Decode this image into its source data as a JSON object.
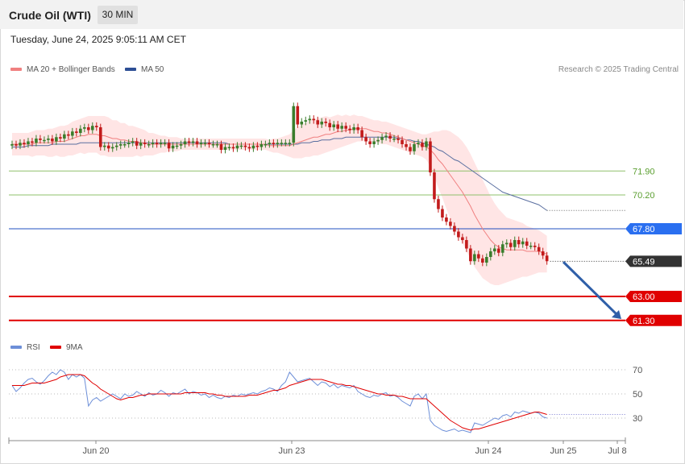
{
  "header": {
    "title": "Crude Oil (WTI)",
    "timeframe": "30 MIN"
  },
  "datetime": "Tuesday, June 24, 2025 9:05:11 AM CET",
  "legend": {
    "ma_bb": "MA 20 + Bollinger Bands",
    "ma50": "MA 50",
    "credit": "Research © 2025 Trading Central"
  },
  "rsi_legend": {
    "rsi": "RSI",
    "ma9": "9MA"
  },
  "colors": {
    "bull": "#3a7d2c",
    "bear": "#c21b1b",
    "ma20": "#f08080",
    "ma50": "#5a6fa0",
    "band": "#ffdcdc",
    "support": "#e00000",
    "resistance_green": "#8fc06b",
    "pivot": "#2050c0",
    "rsi": "#6d8fd8"
  },
  "chart_data": [
    {
      "type": "candlestick",
      "title": "Crude Oil (WTI)",
      "interval": "30 MIN",
      "x_ticks": [
        "Jun 20",
        "Jun 23",
        "Jun 24",
        "Jun 25",
        "Jul 8"
      ],
      "y_range": [
        60.6,
        75.2
      ],
      "last_price": 65.49,
      "levels": [
        {
          "value": 71.9,
          "label": "71.90",
          "style": "resistance-thin"
        },
        {
          "value": 70.2,
          "label": "70.20",
          "style": "resistance-thin"
        },
        {
          "value": 67.8,
          "label": "67.80",
          "style": "pivot"
        },
        {
          "value": 63.0,
          "label": "63.00",
          "style": "support"
        },
        {
          "value": 61.3,
          "label": "61.30",
          "style": "support"
        }
      ],
      "forecast_arrow": {
        "from": 65.45,
        "to": 61.4
      },
      "closes": [
        73.8,
        73.7,
        73.9,
        73.8,
        74.0,
        73.9,
        74.2,
        74.1,
        74.1,
        74.2,
        74.0,
        74.3,
        74.2,
        74.5,
        74.4,
        74.7,
        74.6,
        74.9,
        75.0,
        74.8,
        75.1,
        75.0,
        73.6,
        73.7,
        73.5,
        73.6,
        73.7,
        73.8,
        73.8,
        73.9,
        74.0,
        73.7,
        73.9,
        73.8,
        73.8,
        73.9,
        73.8,
        73.9,
        73.9,
        73.5,
        73.7,
        73.7,
        73.8,
        74.0,
        73.9,
        74.0,
        73.8,
        73.9,
        73.9,
        73.8,
        73.8,
        73.8,
        73.4,
        73.6,
        73.6,
        73.5,
        73.7,
        73.7,
        73.6,
        73.5,
        73.7,
        73.6,
        73.8,
        73.8,
        73.9,
        73.8,
        73.9,
        73.9,
        73.9,
        73.9,
        76.5,
        75.2,
        75.4,
        75.5,
        75.6,
        75.5,
        75.2,
        75.4,
        75.3,
        75.0,
        75.2,
        74.9,
        75.1,
        74.9,
        74.8,
        75.0,
        74.8,
        74.3,
        74.0,
        73.8,
        74.0,
        74.1,
        74.3,
        74.4,
        74.2,
        74.2,
        74.1,
        73.8,
        73.6,
        73.3,
        73.8,
        73.9,
        73.6,
        74.0,
        71.8,
        69.9,
        69.2,
        68.6,
        68.3,
        68.0,
        67.6,
        67.2,
        67.0,
        66.4,
        65.5,
        66.0,
        65.7,
        65.4,
        65.8,
        66.2,
        66.4,
        66.1,
        66.7,
        66.8,
        66.5,
        67.0,
        66.7,
        66.9,
        66.6,
        66.6,
        66.5,
        66.2,
        65.9,
        65.5
      ],
      "ma20": [
        73.8,
        73.8,
        73.8,
        73.8,
        73.8,
        73.8,
        73.9,
        73.9,
        73.9,
        73.9,
        73.9,
        74.0,
        74.0,
        74.0,
        74.1,
        74.2,
        74.3,
        74.4,
        74.4,
        74.5,
        74.5,
        74.5,
        74.4,
        74.4,
        74.3,
        74.2,
        74.2,
        74.1,
        74.1,
        74.0,
        74.0,
        74.0,
        73.9,
        73.9,
        73.8,
        73.8,
        73.8,
        73.8,
        73.8,
        73.8,
        73.8,
        73.8,
        73.8,
        73.8,
        73.8,
        73.8,
        73.8,
        73.8,
        73.8,
        73.8,
        73.8,
        73.8,
        73.8,
        73.8,
        73.8,
        73.8,
        73.8,
        73.8,
        73.8,
        73.8,
        73.8,
        73.8,
        73.8,
        73.8,
        73.7,
        73.7,
        73.7,
        73.7,
        73.7,
        73.7,
        73.8,
        73.9,
        74.0,
        74.1,
        74.2,
        74.3,
        74.3,
        74.4,
        74.5,
        74.5,
        74.6,
        74.7,
        74.7,
        74.8,
        74.8,
        74.9,
        74.9,
        74.9,
        74.9,
        74.8,
        74.7,
        74.7,
        74.6,
        74.6,
        74.5,
        74.4,
        74.3,
        74.2,
        74.1,
        74.0,
        73.9,
        73.8,
        73.7,
        73.6,
        73.4,
        73.1,
        72.7,
        72.4,
        72.0,
        71.6,
        71.2,
        70.8,
        70.4,
        69.9,
        69.4,
        68.8,
        68.3,
        67.8,
        67.4,
        67.0,
        66.7,
        66.5,
        66.4,
        66.3,
        66.3,
        66.3,
        66.3,
        66.3,
        66.2,
        66.2,
        66.2,
        66.2,
        66.1,
        66.0
      ],
      "ma50": [
        73.6,
        73.6,
        73.6,
        73.6,
        73.7,
        73.7,
        73.7,
        73.7,
        73.7,
        73.7,
        73.8,
        73.8,
        73.8,
        73.8,
        73.8,
        73.8,
        73.8,
        73.9,
        73.9,
        73.9,
        73.9,
        73.9,
        73.9,
        73.9,
        73.9,
        73.9,
        73.9,
        73.9,
        73.9,
        73.9,
        73.9,
        73.9,
        73.9,
        73.9,
        73.9,
        73.9,
        73.9,
        73.9,
        73.9,
        73.9,
        73.9,
        73.9,
        73.9,
        73.9,
        73.9,
        73.9,
        73.9,
        73.9,
        73.9,
        73.9,
        73.9,
        73.9,
        73.9,
        73.9,
        73.8,
        73.8,
        73.8,
        73.8,
        73.8,
        73.8,
        73.8,
        73.8,
        73.8,
        73.8,
        73.8,
        73.8,
        73.8,
        73.8,
        73.8,
        73.8,
        73.8,
        73.8,
        73.9,
        73.9,
        73.9,
        74.0,
        74.0,
        74.1,
        74.1,
        74.1,
        74.2,
        74.2,
        74.2,
        74.3,
        74.3,
        74.3,
        74.3,
        74.3,
        74.3,
        74.3,
        74.3,
        74.3,
        74.3,
        74.3,
        74.3,
        74.3,
        74.2,
        74.2,
        74.1,
        74.1,
        74.0,
        74.0,
        73.9,
        73.8,
        73.7,
        73.6,
        73.4,
        73.3,
        73.1,
        72.9,
        72.7,
        72.6,
        72.4,
        72.2,
        72.0,
        71.8,
        71.6,
        71.4,
        71.2,
        71.0,
        70.8,
        70.6,
        70.4,
        70.3,
        70.2,
        70.1,
        70.0,
        69.9,
        69.8,
        69.7,
        69.6,
        69.5,
        69.3,
        69.1
      ],
      "band_width": [
        0.8,
        0.8,
        0.8,
        0.8,
        0.8,
        0.9,
        0.9,
        0.9,
        0.9,
        1.0,
        1.0,
        1.0,
        1.1,
        1.1,
        1.1,
        1.2,
        1.2,
        1.2,
        1.3,
        1.3,
        1.3,
        1.3,
        1.4,
        1.4,
        1.4,
        1.3,
        1.3,
        1.2,
        1.2,
        1.1,
        1.1,
        1.0,
        1.0,
        0.9,
        0.8,
        0.8,
        0.7,
        0.6,
        0.6,
        0.5,
        0.5,
        0.5,
        0.4,
        0.4,
        0.4,
        0.4,
        0.4,
        0.4,
        0.4,
        0.4,
        0.4,
        0.4,
        0.4,
        0.4,
        0.4,
        0.4,
        0.4,
        0.4,
        0.4,
        0.4,
        0.4,
        0.4,
        0.4,
        0.4,
        0.4,
        0.5,
        0.5,
        0.6,
        0.7,
        0.8,
        1.0,
        1.1,
        1.2,
        1.2,
        1.3,
        1.3,
        1.3,
        1.3,
        1.3,
        1.2,
        1.2,
        1.2,
        1.1,
        1.1,
        1.0,
        1.0,
        0.9,
        0.9,
        0.8,
        0.8,
        0.8,
        0.8,
        0.8,
        0.8,
        0.8,
        0.8,
        0.8,
        0.8,
        0.8,
        0.8,
        0.8,
        0.8,
        0.8,
        0.9,
        1.2,
        1.6,
        2.0,
        2.4,
        2.8,
        3.1,
        3.3,
        3.5,
        3.6,
        3.7,
        3.7,
        3.7,
        3.6,
        3.5,
        3.3,
        3.1,
        2.9,
        2.7,
        2.5,
        2.3,
        2.2,
        2.1,
        2.0,
        1.9,
        1.8,
        1.7,
        1.6,
        1.5,
        1.4,
        1.3
      ]
    },
    {
      "type": "line",
      "title": "RSI",
      "y_ticks": [
        70,
        50,
        30
      ],
      "y_range": [
        12,
        80
      ],
      "series": [
        {
          "name": "RSI",
          "values": [
            57,
            52,
            55,
            59,
            62,
            63,
            60,
            58,
            61,
            65,
            68,
            66,
            70,
            68,
            62,
            66,
            64,
            66,
            63,
            40,
            45,
            47,
            44,
            46,
            48,
            50,
            48,
            46,
            50,
            48,
            49,
            52,
            50,
            48,
            51,
            49,
            50,
            53,
            51,
            48,
            51,
            50,
            52,
            54,
            50,
            52,
            51,
            49,
            50,
            47,
            49,
            47,
            46,
            48,
            47,
            49,
            48,
            50,
            49,
            50,
            51,
            50,
            52,
            53,
            55,
            54,
            52,
            57,
            60,
            68,
            64,
            60,
            61,
            62,
            63,
            60,
            57,
            60,
            59,
            56,
            58,
            55,
            57,
            56,
            55,
            57,
            52,
            50,
            48,
            47,
            49,
            48,
            50,
            51,
            48,
            49,
            47,
            44,
            42,
            40,
            48,
            50,
            46,
            50,
            28,
            24,
            22,
            20,
            19,
            20,
            21,
            19,
            20,
            19,
            18,
            26,
            25,
            24,
            26,
            28,
            30,
            29,
            32,
            33,
            31,
            35,
            34,
            36,
            35,
            34,
            35,
            34,
            31,
            30
          ]
        },
        {
          "name": "9MA",
          "values": [
            57,
            57,
            57,
            57,
            58,
            59,
            59,
            59,
            59,
            60,
            61,
            62,
            64,
            65,
            66,
            66,
            66,
            66,
            65,
            62,
            59,
            57,
            54,
            52,
            50,
            48,
            46,
            45,
            46,
            47,
            47,
            48,
            49,
            49,
            50,
            50,
            50,
            50,
            50,
            50,
            50,
            50,
            50,
            51,
            51,
            51,
            51,
            51,
            51,
            50,
            50,
            49,
            49,
            48,
            48,
            48,
            48,
            48,
            48,
            49,
            49,
            49,
            50,
            51,
            52,
            53,
            53,
            54,
            55,
            57,
            58,
            59,
            60,
            61,
            62,
            62,
            62,
            62,
            61,
            60,
            59,
            58,
            58,
            57,
            57,
            56,
            55,
            54,
            53,
            52,
            51,
            50,
            50,
            49,
            49,
            49,
            48,
            48,
            47,
            46,
            46,
            46,
            46,
            46,
            43,
            40,
            37,
            34,
            31,
            28,
            26,
            24,
            22,
            21,
            20,
            21,
            21,
            22,
            23,
            24,
            25,
            26,
            27,
            28,
            29,
            30,
            31,
            32,
            33,
            34,
            35,
            35,
            34,
            33
          ]
        }
      ]
    }
  ]
}
